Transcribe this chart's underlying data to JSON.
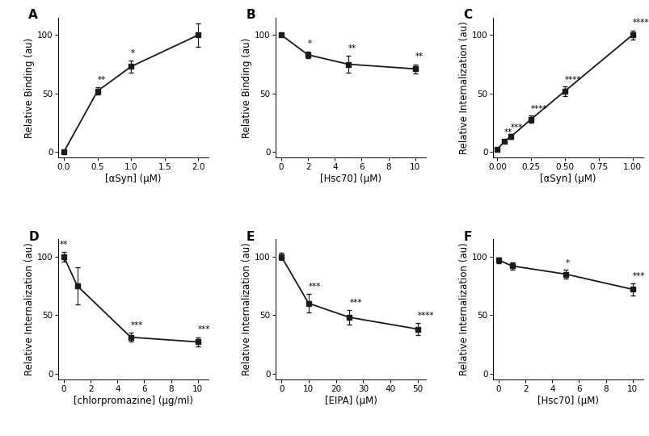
{
  "panels": {
    "A": {
      "x": [
        0,
        0.5,
        1,
        2
      ],
      "y": [
        0,
        52,
        73,
        100
      ],
      "yerr": [
        0.5,
        3,
        5,
        10
      ],
      "xlabel": "[αSyn] (μM)",
      "ylabel": "Relative Binding (au)",
      "xlim": [
        -0.08,
        2.15
      ],
      "ylim": [
        -5,
        115
      ],
      "xticks": [
        0,
        0.5,
        1.0,
        1.5,
        2.0
      ],
      "yticks": [
        0,
        50,
        100
      ],
      "stars": [
        [
          "**",
          0.5,
          58,
          "left"
        ],
        [
          "*",
          1.0,
          81,
          "left"
        ]
      ],
      "label": "A"
    },
    "B": {
      "x": [
        0,
        2,
        5,
        10
      ],
      "y": [
        100,
        83,
        75,
        71
      ],
      "yerr": [
        1.5,
        3,
        7,
        4
      ],
      "xlabel": "[Hsc70] (μM)",
      "ylabel": "Relative Binding (au)",
      "xlim": [
        -0.4,
        10.8
      ],
      "ylim": [
        -5,
        115
      ],
      "xticks": [
        0,
        2,
        4,
        6,
        8,
        10
      ],
      "yticks": [
        0,
        50,
        100
      ],
      "stars": [
        [
          "*",
          2,
          89,
          "left"
        ],
        [
          "**",
          5,
          85,
          "left"
        ],
        [
          "**",
          10,
          78,
          "left"
        ]
      ],
      "label": "B"
    },
    "C": {
      "x": [
        0,
        0.05,
        0.1,
        0.25,
        0.5,
        1.0
      ],
      "y": [
        2,
        9,
        13,
        28,
        52,
        100
      ],
      "yerr": [
        0.5,
        1.5,
        2,
        3,
        4,
        4
      ],
      "xlabel": "[αSyn] (μM)",
      "ylabel": "Relative Internalization (au)",
      "xlim": [
        -0.03,
        1.08
      ],
      "ylim": [
        -5,
        115
      ],
      "xticks": [
        0,
        0.25,
        0.5,
        0.75,
        1.0
      ],
      "yticks": [
        0,
        50,
        100
      ],
      "stars": [
        [
          "**",
          0.05,
          13,
          "left"
        ],
        [
          "***",
          0.1,
          17,
          "left"
        ],
        [
          "****",
          0.25,
          33,
          "left"
        ],
        [
          "****",
          0.5,
          58,
          "left"
        ],
        [
          "****",
          1.0,
          107,
          "left"
        ]
      ],
      "label": "C"
    },
    "D": {
      "x": [
        0,
        1,
        5,
        10
      ],
      "y": [
        100,
        75,
        31,
        27
      ],
      "yerr": [
        4,
        16,
        4,
        4
      ],
      "xlabel": "[chlorpromazine] (μg/ml)",
      "ylabel": "Relative Internalization (au)",
      "xlim": [
        -0.4,
        10.8
      ],
      "ylim": [
        -5,
        115
      ],
      "xticks": [
        0,
        2,
        4,
        6,
        8,
        10
      ],
      "yticks": [
        0,
        50,
        100
      ],
      "stars": [
        [
          "**",
          0,
          107,
          "center"
        ],
        [
          "***",
          5,
          38,
          "left"
        ],
        [
          "***",
          10,
          34,
          "left"
        ]
      ],
      "label": "D"
    },
    "E": {
      "x": [
        0,
        10,
        25,
        50
      ],
      "y": [
        100,
        60,
        48,
        38
      ],
      "yerr": [
        3,
        8,
        6,
        5
      ],
      "xlabel": "[EIPA] (μM)",
      "ylabel": "Relative Internalization (au)",
      "xlim": [
        -2,
        53
      ],
      "ylim": [
        -5,
        115
      ],
      "xticks": [
        0,
        10,
        20,
        30,
        40,
        50
      ],
      "yticks": [
        0,
        50,
        100
      ],
      "stars": [
        [
          "***",
          10,
          71,
          "left"
        ],
        [
          "***",
          25,
          57,
          "left"
        ],
        [
          "****",
          50,
          46,
          "left"
        ]
      ],
      "label": "E"
    },
    "F": {
      "x": [
        0,
        1,
        5,
        10
      ],
      "y": [
        97,
        92,
        85,
        72
      ],
      "yerr": [
        2.5,
        3,
        3.5,
        5
      ],
      "xlabel": "[Hsc70] (μM)",
      "ylabel": "Relative Internalization (au)",
      "xlim": [
        -0.4,
        10.8
      ],
      "ylim": [
        -5,
        115
      ],
      "xticks": [
        0,
        2,
        4,
        6,
        8,
        10
      ],
      "yticks": [
        0,
        50,
        100
      ],
      "stars": [
        [
          "*",
          5,
          91,
          "left"
        ],
        [
          "***",
          10,
          80,
          "left"
        ]
      ],
      "label": "F"
    }
  },
  "line_color": "#1a1a1a",
  "marker": "s",
  "markersize": 4.5,
  "linewidth": 1.3,
  "capsize": 2.5,
  "star_fontsize": 7.5,
  "tick_fontsize": 7.5,
  "axis_label_fontsize": 8.5,
  "panel_label_fontsize": 11
}
